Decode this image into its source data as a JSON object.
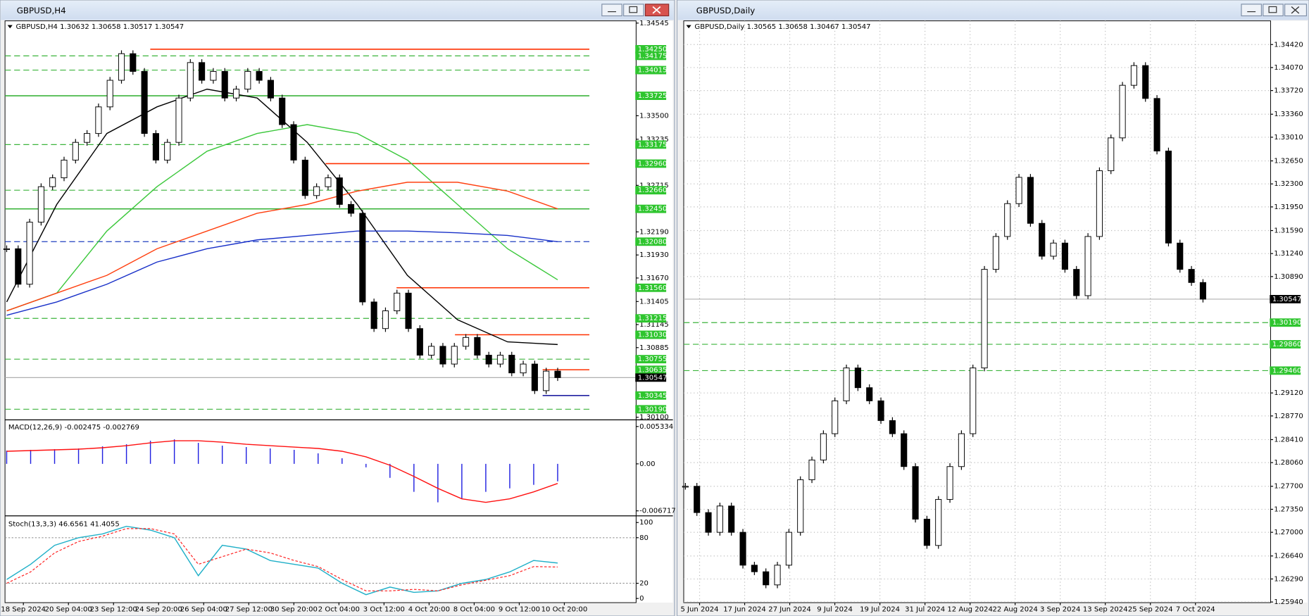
{
  "left": {
    "title": "GBPUSD,H4",
    "header": "GBPUSD,H4  1.30632 1.30658 1.30517 1.30547",
    "ylim": [
      1.3008,
      1.3457
    ],
    "yticks": [
      1.34545,
      {
        "value": 1.335,
        "label": "1.33500"
      },
      1.33235,
      1.32715,
      {
        "value": 1.3219,
        "label": "1.32190"
      },
      {
        "value": 1.3193,
        "label": "1.31930"
      },
      {
        "value": 1.3167,
        "label": "1.31670"
      },
      1.31405,
      1.31145,
      1.30885,
      {
        "value": 1.301,
        "label": "1.30100"
      }
    ],
    "levels": [
      {
        "value": 1.3425,
        "label": "1.34250",
        "color": "#ff3000",
        "style": "solid"
      },
      {
        "value": 1.34175,
        "label": "1.34175",
        "color": "#3cb43c",
        "style": "dashed"
      },
      {
        "value": 1.34015,
        "label": "1.34015",
        "color": "#3cb43c",
        "style": "dashed"
      },
      {
        "value": 1.33725,
        "label": "1.33725",
        "color": "#3cb43c",
        "style": "solid"
      },
      {
        "value": 1.33175,
        "label": "1.33175",
        "color": "#3cb43c",
        "style": "dashed"
      },
      {
        "value": 1.3296,
        "label": "1.32960",
        "color": "#ff3000",
        "style": "solid"
      },
      {
        "value": 1.3266,
        "label": "1.32660",
        "color": "#3cb43c",
        "style": "dashed"
      },
      {
        "value": 1.3245,
        "label": "1.32450",
        "color": "#3cb43c",
        "style": "solid"
      },
      {
        "value": 1.3208,
        "label": "1.32080",
        "color": "#2040c0",
        "style": "dashed"
      },
      {
        "value": 1.3156,
        "label": "1.31560",
        "color": "#ff3000",
        "style": "solid"
      },
      {
        "value": 1.31215,
        "label": "1.31215",
        "color": "#3cb43c",
        "style": "dashed"
      },
      {
        "value": 1.3103,
        "label": "1.31030",
        "color": "#ff3000",
        "style": "solid"
      },
      {
        "value": 1.30755,
        "label": "1.30755",
        "color": "#3cb43c",
        "style": "dashed"
      },
      {
        "value": 1.30635,
        "label": "1.30635",
        "color": "#ff3000",
        "style": "solid"
      },
      {
        "value": 1.30345,
        "label": "1.30345",
        "color": "#2020a0",
        "style": "solid"
      },
      {
        "value": 1.3019,
        "label": "1.30190",
        "color": "#3cb43c",
        "style": "dashed"
      }
    ],
    "current": {
      "value": 1.30547,
      "label": "1.30547"
    },
    "close": [
      1.32,
      1.316,
      1.323,
      1.327,
      1.328,
      1.33,
      1.332,
      1.333,
      1.336,
      1.339,
      1.342,
      1.34,
      1.333,
      1.33,
      1.332,
      1.337,
      1.341,
      1.339,
      1.34,
      1.337,
      1.338,
      1.34,
      1.339,
      1.337,
      1.334,
      1.33,
      1.326,
      1.327,
      1.328,
      1.325,
      1.324,
      1.314,
      1.311,
      1.313,
      1.315,
      1.311,
      1.308,
      1.309,
      1.307,
      1.309,
      1.31,
      1.308,
      1.307,
      1.308,
      1.306,
      1.307,
      1.304,
      1.3062,
      1.30547
    ],
    "ma": [
      {
        "color": "#000000",
        "values": [
          1.314,
          1.325,
          1.333,
          1.336,
          1.338,
          1.337,
          1.332,
          1.325,
          1.317,
          1.312,
          1.3095,
          1.3092
        ]
      },
      {
        "color": "#3cc83c",
        "values": [
          1.313,
          1.315,
          1.322,
          1.327,
          1.331,
          1.333,
          1.334,
          1.333,
          1.33,
          1.325,
          1.32,
          1.3165
        ]
      },
      {
        "color": "#ff4010",
        "values": [
          1.313,
          1.315,
          1.317,
          1.32,
          1.322,
          1.324,
          1.325,
          1.3265,
          1.3275,
          1.3275,
          1.3265,
          1.3245
        ]
      },
      {
        "color": "#1830c8",
        "values": [
          1.3125,
          1.314,
          1.316,
          1.3185,
          1.32,
          1.321,
          1.3215,
          1.322,
          1.322,
          1.3218,
          1.3215,
          1.3208
        ]
      }
    ],
    "dates": [
      "18 Sep 2024",
      "20 Sep 04:00",
      "23 Sep 12:00",
      "24 Sep 20:00",
      "26 Sep 04:00",
      "27 Sep 12:00",
      "30 Sep 20:00",
      "2 Oct 04:00",
      "3 Oct 12:00",
      "4 Oct 20:00",
      "8 Oct 04:00",
      "9 Oct 12:00",
      "10 Oct 20:00"
    ],
    "macd": {
      "header": "MACD(12,26,9) -0.002475 -0.002769",
      "ylim": [
        -0.00731,
        0.00605
      ],
      "yticks": [
        0.005334,
        {
          "value": 0,
          "label": "0.00"
        },
        -0.006717
      ],
      "histogram": {
        "color": "#2020e0",
        "values": [
          0.0019,
          0.002,
          0.0021,
          0.0022,
          0.0025,
          0.0028,
          0.0033,
          0.0035,
          0.003,
          0.0026,
          0.0024,
          0.0022,
          0.002,
          0.0015,
          0.0008,
          -0.0005,
          -0.002,
          -0.004,
          -0.0055,
          -0.005,
          -0.004,
          -0.0035,
          -0.003,
          -0.0025
        ]
      },
      "signal": {
        "color": "#ff1010",
        "values": [
          0.0018,
          0.0019,
          0.002,
          0.0021,
          0.0023,
          0.0026,
          0.003,
          0.0033,
          0.0033,
          0.0031,
          0.0028,
          0.0026,
          0.0024,
          0.0022,
          0.0018,
          0.001,
          -0.0002,
          -0.0018,
          -0.0035,
          -0.005,
          -0.0055,
          -0.005,
          -0.004,
          -0.0028
        ]
      }
    },
    "stoch": {
      "header": "Stoch(13,3,3) 46.6561 41.4055",
      "ylim": [
        -5.5,
        106.6
      ],
      "yticks": [
        100,
        80,
        20,
        0
      ],
      "levels": [
        80,
        20
      ],
      "main": {
        "color": "#20b0c8",
        "values": [
          25,
          45,
          70,
          80,
          85,
          95,
          90,
          80,
          30,
          70,
          65,
          50,
          45,
          40,
          20,
          5,
          15,
          8,
          10,
          20,
          25,
          35,
          50,
          46.6561
        ]
      },
      "signal": {
        "color": "#ff2020",
        "values": [
          20,
          35,
          60,
          75,
          82,
          92,
          92,
          85,
          45,
          55,
          65,
          60,
          50,
          42,
          25,
          10,
          10,
          12,
          10,
          18,
          24,
          30,
          42,
          41.4055
        ]
      }
    }
  },
  "right": {
    "title": "GBPUSD,Daily",
    "header": "GBPUSD,Daily  1.30565 1.30658 1.30467 1.30547",
    "ylim": [
      1.2593,
      1.3478
    ],
    "grid": true,
    "yticks": [
      {
        "value": 1.3442,
        "label": "1.34420"
      },
      {
        "value": 1.3407,
        "label": "1.34070"
      },
      {
        "value": 1.3372,
        "label": "1.33720"
      },
      {
        "value": 1.3336,
        "label": "1.33360"
      },
      {
        "value": 1.3301,
        "label": "1.33010"
      },
      {
        "value": 1.3265,
        "label": "1.32650"
      },
      {
        "value": 1.323,
        "label": "1.32300"
      },
      {
        "value": 1.3195,
        "label": "1.31950"
      },
      {
        "value": 1.3159,
        "label": "1.31590"
      },
      {
        "value": 1.3124,
        "label": "1.31240"
      },
      {
        "value": 1.3089,
        "label": "1.30890"
      },
      {
        "value": 1.2912,
        "label": "1.29120"
      },
      {
        "value": 1.2877,
        "label": "1.28770"
      },
      {
        "value": 1.2841,
        "label": "1.28410"
      },
      {
        "value": 1.2806,
        "label": "1.28060"
      },
      {
        "value": 1.277,
        "label": "1.27700"
      },
      {
        "value": 1.2735,
        "label": "1.27350"
      },
      {
        "value": 1.27,
        "label": "1.27000"
      },
      {
        "value": 1.2664,
        "label": "1.26640"
      },
      {
        "value": 1.2629,
        "label": "1.26290"
      },
      {
        "value": 1.2594,
        "label": "1.25940"
      }
    ],
    "levels": [
      {
        "value": 1.3019,
        "label": "1.30190",
        "color": "#3cb43c",
        "style": "dashed"
      },
      {
        "value": 1.2986,
        "label": "1.29860",
        "color": "#3cb43c",
        "style": "dashed"
      },
      {
        "value": 1.2946,
        "label": "1.29460",
        "color": "#3cb43c",
        "style": "dashed"
      }
    ],
    "current": {
      "value": 1.30547,
      "label": "1.30547"
    },
    "close": [
      1.277,
      1.273,
      1.27,
      1.274,
      1.27,
      1.265,
      1.264,
      1.262,
      1.265,
      1.27,
      1.278,
      1.281,
      1.285,
      1.29,
      1.295,
      1.292,
      1.29,
      1.287,
      1.285,
      1.28,
      1.272,
      1.268,
      1.275,
      1.28,
      1.285,
      1.295,
      1.31,
      1.315,
      1.32,
      1.324,
      1.317,
      1.312,
      1.314,
      1.31,
      1.306,
      1.315,
      1.325,
      1.33,
      1.338,
      1.341,
      1.336,
      1.328,
      1.314,
      1.31,
      1.308,
      1.30547
    ],
    "dates": [
      "5 Jun 2024",
      "17 Jun 2024",
      "27 Jun 2024",
      "9 Jul 2024",
      "19 Jul 2024",
      "31 Jul 2024",
      "12 Aug 2024",
      "22 Aug 2024",
      "3 Sep 2024",
      "13 Sep 2024",
      "25 Sep 2024",
      "7 Oct 2024"
    ]
  }
}
